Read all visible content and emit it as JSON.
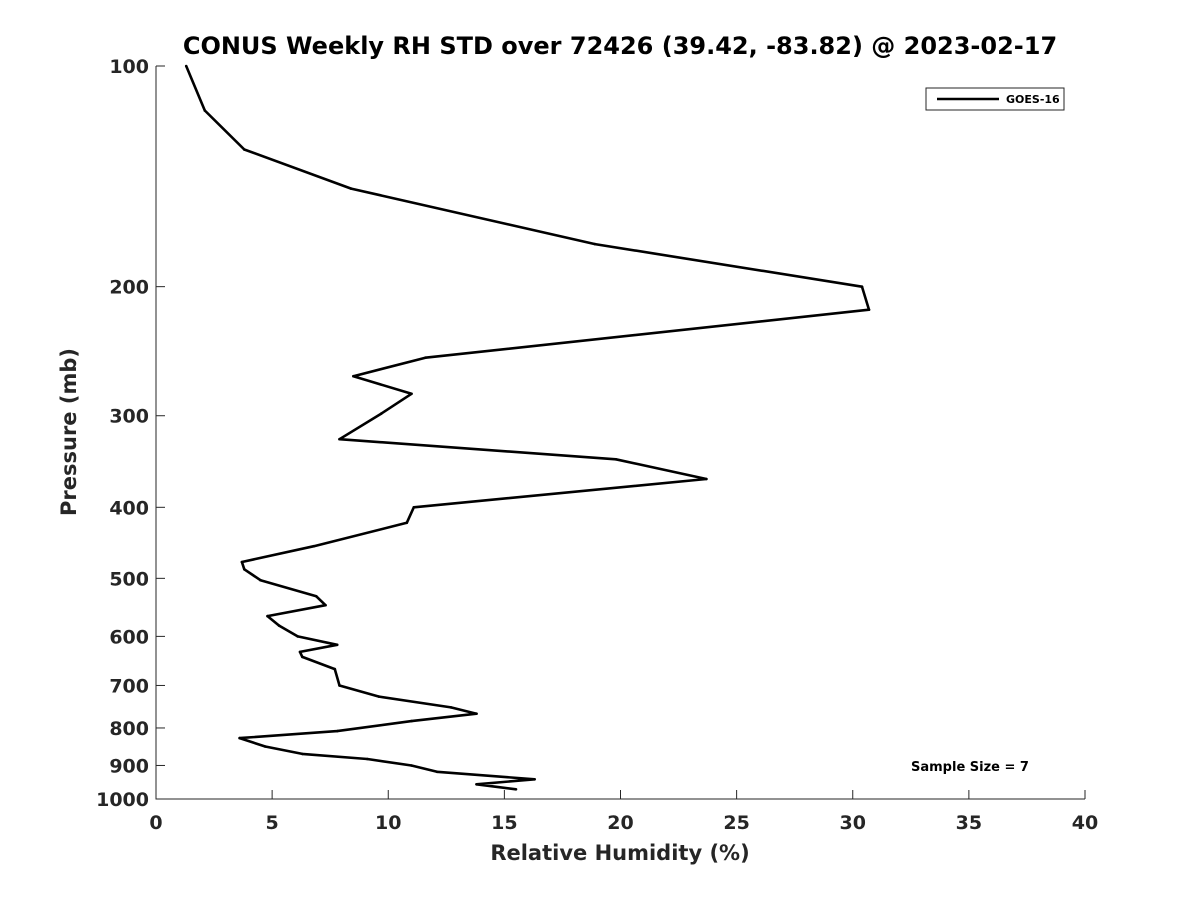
{
  "chart_data": {
    "type": "line",
    "title": "CONUS Weekly RH STD over 72426 (39.42, -83.82) @ 2023-02-17",
    "xlabel": "Relative Humidity (%)",
    "ylabel": "Pressure (mb)",
    "xlim": [
      0,
      40
    ],
    "ylim": [
      100,
      1000
    ],
    "yscale": "log",
    "y_reversed": true,
    "x_ticks": [
      0,
      5,
      10,
      15,
      20,
      25,
      30,
      35,
      40
    ],
    "y_ticks": [
      100,
      200,
      300,
      400,
      500,
      600,
      700,
      800,
      900,
      1000
    ],
    "grid": false,
    "legend_position": "top-right",
    "annotation": "Sample Size = 7",
    "series": [
      {
        "name": "GOES-16",
        "color": "#000000",
        "x": [
          1.3,
          2.1,
          3.8,
          8.4,
          18.9,
          30.4,
          30.7,
          11.6,
          8.5,
          11.0,
          9.7,
          7.9,
          19.8,
          23.7,
          11.1,
          10.8,
          6.8,
          3.7,
          3.8,
          4.5,
          6.9,
          7.3,
          4.8,
          5.3,
          6.1,
          7.8,
          6.2,
          6.3,
          7.7,
          7.9,
          9.6,
          12.7,
          13.8,
          11.0,
          7.8,
          3.6,
          4.7,
          6.3,
          9.1,
          11.0,
          12.1,
          16.3,
          13.8,
          15.5
        ],
        "y": [
          100,
          115,
          130,
          147,
          175,
          200,
          215,
          250,
          265,
          280,
          298,
          323,
          344,
          366,
          400,
          420,
          452,
          475,
          486,
          503,
          529,
          544,
          563,
          580,
          600,
          616,
          630,
          640,
          665,
          700,
          725,
          750,
          765,
          783,
          808,
          826,
          848,
          868,
          882,
          900,
          918,
          940,
          955,
          970
        ]
      }
    ]
  }
}
